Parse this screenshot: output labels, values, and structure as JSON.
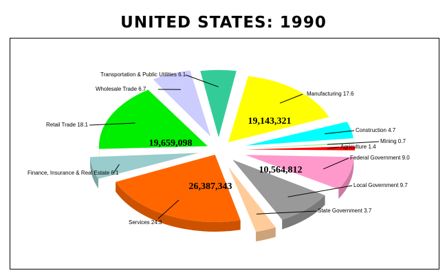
{
  "title": "UNITED STATES:  1990",
  "chart_data": {
    "type": "pie",
    "title": "UNITED STATES:  1990",
    "style": "exploded-3d",
    "slices": [
      {
        "label": "Manufacturing",
        "display": "Manufacturing 17.6",
        "percent": 17.6,
        "value_label": "19,143,321",
        "color": "#ffff00"
      },
      {
        "label": "Construction",
        "display": "Construction 4.7",
        "percent": 4.7,
        "value_label": "",
        "color": "#00ffff"
      },
      {
        "label": "Mining",
        "display": "Mining  0.7",
        "percent": 0.7,
        "value_label": "",
        "color": "#90ee90"
      },
      {
        "label": "Agriculture",
        "display": "Agriculture 1.4",
        "percent": 1.4,
        "value_label": "",
        "color": "#ff0000"
      },
      {
        "label": "Federal Government",
        "display": "Federal Government 9.0",
        "percent": 9.0,
        "value_label": "",
        "color": "#ff99cc"
      },
      {
        "label": "Local Government",
        "display": "Local Government 9.7",
        "percent": 9.7,
        "value_label": "10,564,812",
        "color": "#999999"
      },
      {
        "label": "State Government",
        "display": "State Government 3.7",
        "percent": 3.7,
        "value_label": "",
        "color": "#ffcc99"
      },
      {
        "label": "Services",
        "display": "Services 24.3",
        "percent": 24.3,
        "value_label": "26,387,343",
        "color": "#ff6600"
      },
      {
        "label": "Finance, Insurance & Real Estate",
        "display": "Finance, Insurance & Real Estate 6.1",
        "percent": 6.1,
        "value_label": "",
        "color": "#99cccc"
      },
      {
        "label": "Retail Trade",
        "display": "Retail Trade 18.1",
        "percent": 18.1,
        "value_label": "19,659,098",
        "color": "#00ee00"
      },
      {
        "label": "Wholesale Trade",
        "display": "Wholesale Trade 6.7",
        "percent": 6.7,
        "value_label": "",
        "color": "#ccccff"
      },
      {
        "label": "Transportation & Public Utilities",
        "display": "Transportation & Public Utilities 6.1",
        "percent": 6.1,
        "value_label": "",
        "color": "#33cc99"
      }
    ]
  }
}
